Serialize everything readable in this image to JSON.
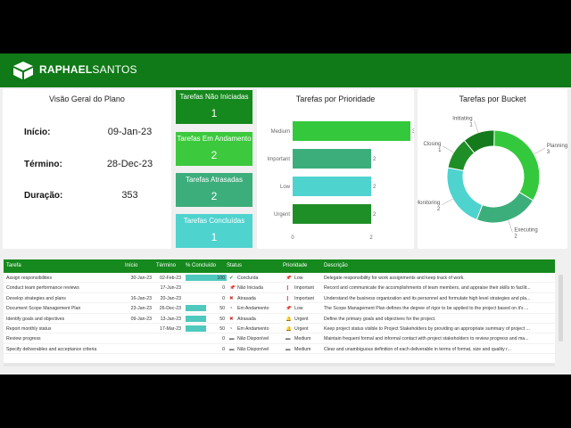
{
  "brand": {
    "first": "RAPHAEL",
    "last": "SANTOS"
  },
  "overview": {
    "title": "Visão Geral do Plano",
    "start_label": "Início:",
    "start_value": "09-Jan-23",
    "end_label": "Término:",
    "end_value": "28-Dec-23",
    "duration_label": "Duração:",
    "duration_value": "353"
  },
  "tiles": [
    {
      "title": "Tarefas Não Iniciadas",
      "value": "1",
      "color": "#15891d"
    },
    {
      "title": "Tarefas Em Andamento",
      "value": "2",
      "color": "#3cc93d"
    },
    {
      "title": "Tarefas Atrasadas",
      "value": "2",
      "color": "#3cae7c"
    },
    {
      "title": "Tarefas Concluídas",
      "value": "1",
      "color": "#4fd3cf"
    }
  ],
  "chart_data": [
    {
      "type": "bar",
      "title": "Tarefas por Prioridade",
      "categories": [
        "Medium",
        "Important",
        "Low",
        "Urgent"
      ],
      "values": [
        3,
        2,
        2,
        2
      ],
      "xlim": [
        0,
        3
      ],
      "xticks": [
        "0",
        "2"
      ],
      "colors": [
        "#34c93c",
        "#3cae7c",
        "#4fd3cf",
        "#1e8f26"
      ],
      "orientation": "horizontal"
    },
    {
      "type": "pie",
      "title": "Tarefas por Bucket",
      "categories": [
        "Planning",
        "Executing",
        "Monitoring",
        "Closing",
        "Initiating"
      ],
      "values": [
        3,
        2,
        2,
        1,
        1
      ],
      "colors": [
        "#34c93c",
        "#3cae7c",
        "#4fd3cf",
        "#1e8f26",
        "#157a1c"
      ],
      "donut": true
    }
  ],
  "table": {
    "headers": [
      "Tarefa",
      "Início",
      "Término",
      "% Concluído",
      "Status",
      "Prioridade",
      "Descrição"
    ],
    "rows": [
      {
        "task": "Assign responsibilities",
        "start": "30-Jan-23",
        "end": "02-Feb-23",
        "pct": "100",
        "pct_num": 100,
        "status": "Concluída",
        "priority": "Low",
        "desc": "Delegate responsibility for work assignments and keep track of work."
      },
      {
        "task": "Conduct team performance reviews",
        "start": "",
        "end": "17-Jun-23",
        "pct": "0",
        "pct_num": 0,
        "status": "Não Iniciada",
        "priority": "Important",
        "desc": "Record and communicate the accomplishments of team members, and appraise their skills to facilit..."
      },
      {
        "task": "Develop strategies and plans",
        "start": "16-Jan-23",
        "end": "20-Jan-23",
        "pct": "0",
        "pct_num": 0,
        "status": "Atrasada",
        "priority": "Important",
        "desc": "Understand the business organization and its personnel and formulate high level strategies and pla..."
      },
      {
        "task": "Document Scope Management Plan",
        "start": "23-Jan-23",
        "end": "26-Dec-23",
        "pct": "50",
        "pct_num": 50,
        "status": "Em Andamento",
        "priority": "Low",
        "desc": "The Scope Management Plan defines the degree of rigor to be applied to the project based on it's ..."
      },
      {
        "task": "Identify goals and objectives",
        "start": "09-Jan-23",
        "end": "13-Jan-23",
        "pct": "50",
        "pct_num": 50,
        "status": "Atrasada",
        "priority": "Urgent",
        "desc": "Define the primary goals and objectives for the project."
      },
      {
        "task": "Report monthly status",
        "start": "",
        "end": "17-Mar-23",
        "pct": "50",
        "pct_num": 50,
        "status": "Em Andamento",
        "priority": "Urgent",
        "desc": "Keep project status visible to Project Stakeholders by providing an appropriate summary of project ..."
      },
      {
        "task": "Review progress",
        "start": "",
        "end": "",
        "pct": "0",
        "pct_num": 0,
        "status": "Não Disponível",
        "priority": "Medium",
        "desc": "Maintain frequent formal and informal contact with project stakeholders to review progress and ma..."
      },
      {
        "task": "Specify deliverables and acceptance criteria",
        "start": "",
        "end": "",
        "pct": "0",
        "pct_num": 0,
        "status": "Não Disponível",
        "priority": "Medium",
        "desc": "Clear and unambiguous definition of each deliverable in terms of format, size and quality r..."
      }
    ]
  }
}
